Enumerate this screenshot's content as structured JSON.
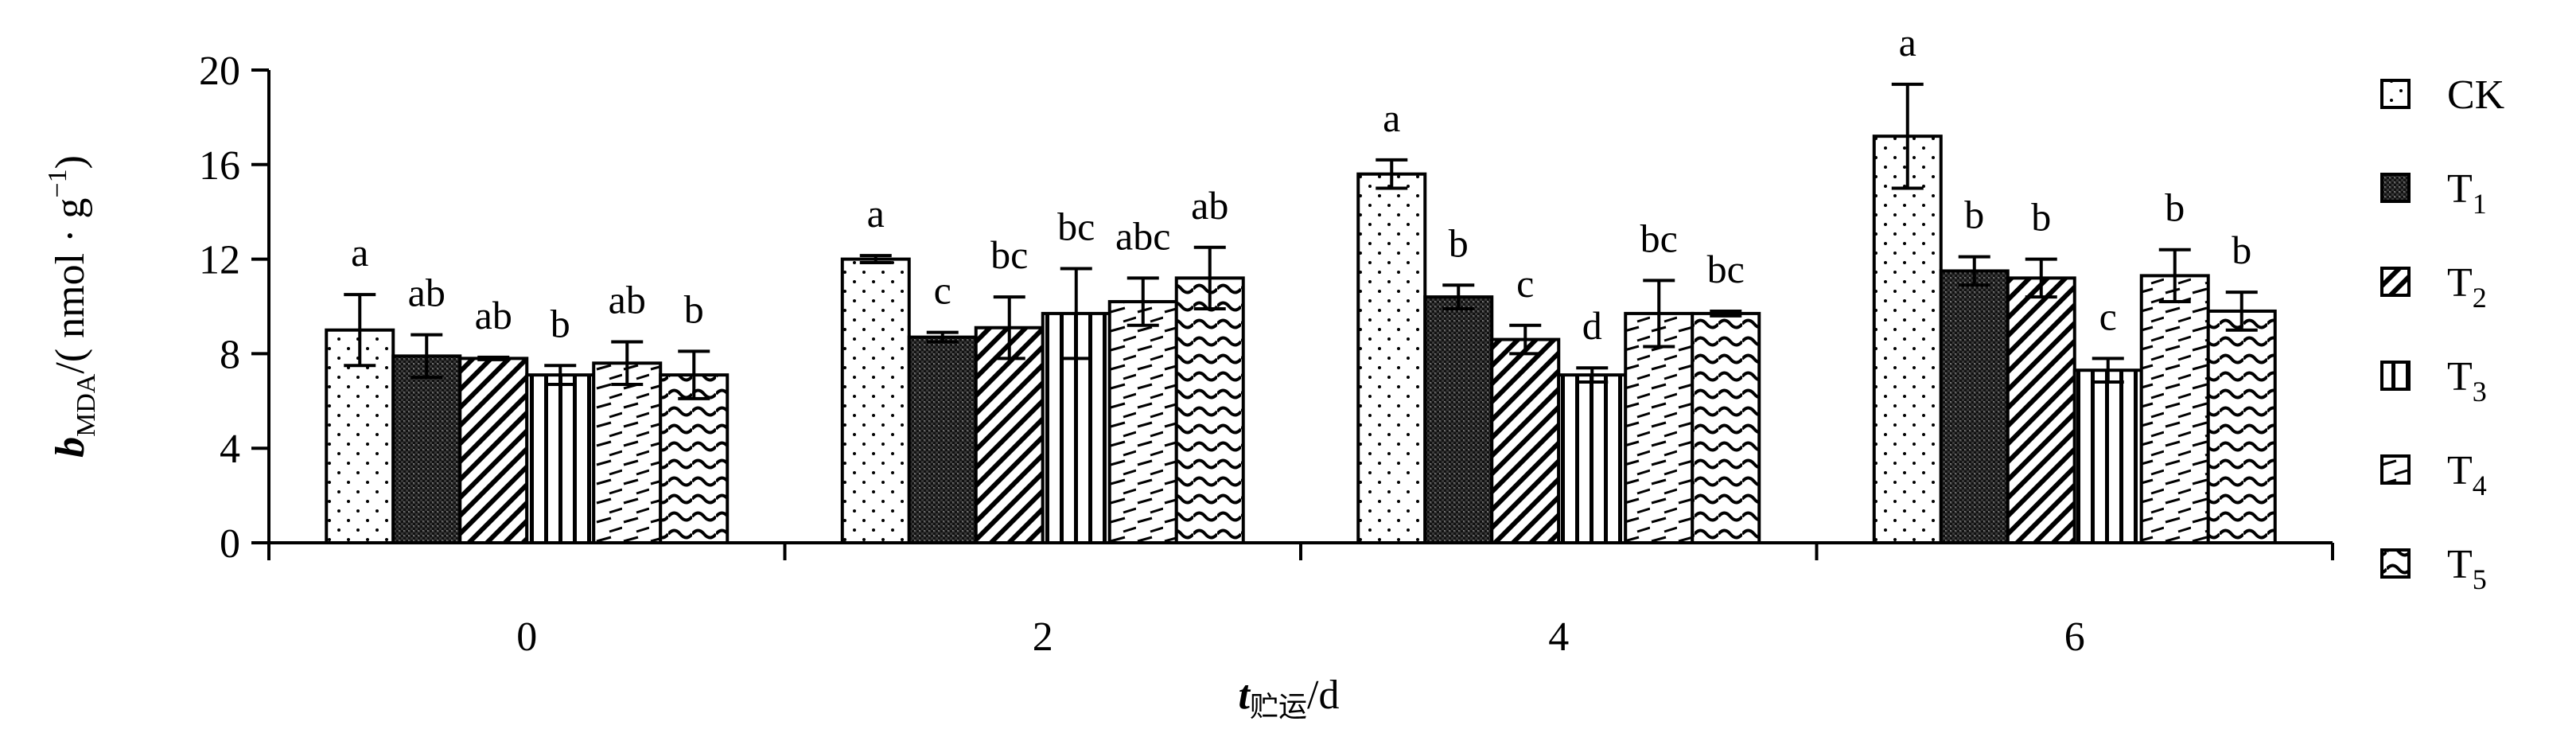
{
  "chart_data": {
    "type": "bar",
    "categories": [
      "0",
      "2",
      "4",
      "6"
    ],
    "ylim": [
      0,
      20
    ],
    "yticks": [
      0,
      4,
      8,
      12,
      16,
      20
    ],
    "grid": false,
    "legend_position": "right",
    "ylabel": {
      "main": "b",
      "sub": "MDA",
      "unit_prefix": "/( nmol · g",
      "unit_sup": "−1",
      "unit_suffix": ")"
    },
    "xlabel": {
      "main": "t",
      "sub": "贮运",
      "unit": "/d"
    },
    "series": [
      {
        "name": "CK",
        "label_main": "CK",
        "label_sub": "",
        "pattern": "dots",
        "values": [
          9.0,
          12.0,
          15.6,
          17.2
        ],
        "errors": [
          1.5,
          0.15,
          0.6,
          2.2
        ],
        "letters": [
          "a",
          "a",
          "a",
          "a"
        ]
      },
      {
        "name": "T1",
        "label_main": "T",
        "label_sub": "1",
        "pattern": "dense",
        "values": [
          7.9,
          8.7,
          10.4,
          11.5
        ],
        "errors": [
          0.9,
          0.2,
          0.5,
          0.6
        ],
        "letters": [
          "ab",
          "c",
          "b",
          "b"
        ]
      },
      {
        "name": "T2",
        "label_main": "T",
        "label_sub": "2",
        "pattern": "diag",
        "values": [
          7.8,
          9.1,
          8.6,
          11.2
        ],
        "errors": [
          0.05,
          1.3,
          0.6,
          0.8
        ],
        "letters": [
          "ab",
          "bc",
          "c",
          "b"
        ]
      },
      {
        "name": "T3",
        "label_main": "T",
        "label_sub": "3",
        "pattern": "vlines",
        "values": [
          7.1,
          9.7,
          7.1,
          7.3
        ],
        "errors": [
          0.4,
          1.9,
          0.3,
          0.5
        ],
        "letters": [
          "b",
          "bc",
          "d",
          "c"
        ]
      },
      {
        "name": "T4",
        "label_main": "T",
        "label_sub": "4",
        "pattern": "dashes",
        "values": [
          7.6,
          10.2,
          9.7,
          11.3
        ],
        "errors": [
          0.9,
          1.0,
          1.4,
          1.1
        ],
        "letters": [
          "ab",
          "abc",
          "bc",
          "b"
        ]
      },
      {
        "name": "T5",
        "label_main": "T",
        "label_sub": "5",
        "pattern": "waves",
        "values": [
          7.1,
          11.2,
          9.7,
          9.8
        ],
        "errors": [
          1.0,
          1.3,
          0.1,
          0.8
        ],
        "letters": [
          "b",
          "ab",
          "bc",
          "b"
        ]
      }
    ]
  }
}
